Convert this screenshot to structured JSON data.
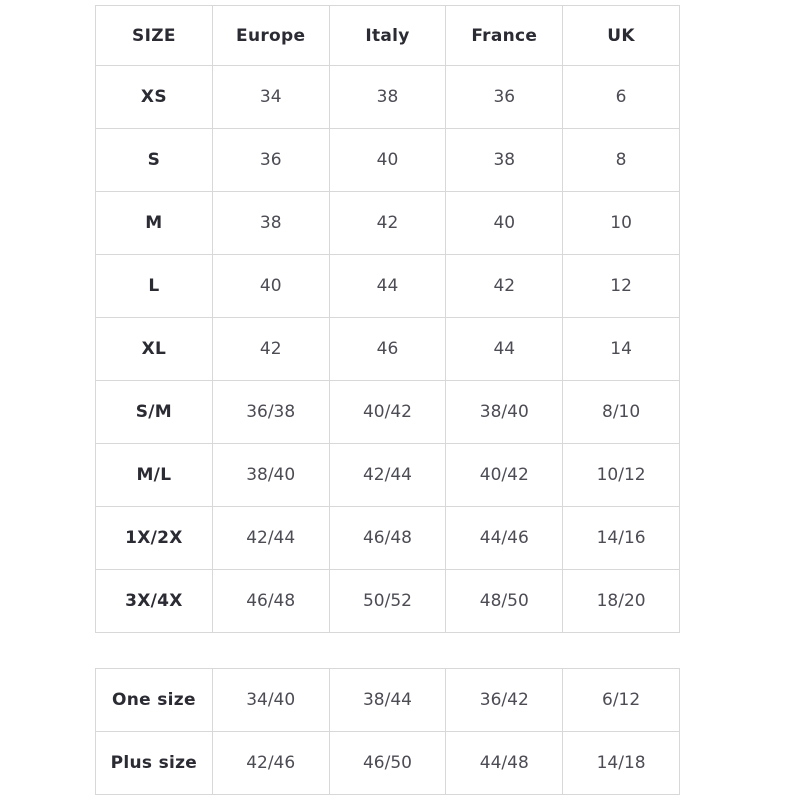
{
  "page": {
    "background": "#ffffff"
  },
  "colors": {
    "border": "#d8d8d8",
    "header_text": "#2b2b34",
    "cell_text": "#4c4c55"
  },
  "chart_data": {
    "type": "table",
    "title": "",
    "columns": [
      "SIZE",
      "Europe",
      "Italy",
      "France",
      "UK"
    ],
    "rows": [
      {
        "size": "XS",
        "values": [
          "34",
          "38",
          "36",
          "6"
        ]
      },
      {
        "size": "S",
        "values": [
          "36",
          "40",
          "38",
          "8"
        ]
      },
      {
        "size": "M",
        "values": [
          "38",
          "42",
          "40",
          "10"
        ]
      },
      {
        "size": "L",
        "values": [
          "40",
          "44",
          "42",
          "12"
        ]
      },
      {
        "size": "XL",
        "values": [
          "42",
          "46",
          "44",
          "14"
        ]
      },
      {
        "size": "S/M",
        "values": [
          "36/38",
          "40/42",
          "38/40",
          "8/10"
        ]
      },
      {
        "size": "M/L",
        "values": [
          "38/40",
          "42/44",
          "40/42",
          "10/12"
        ]
      },
      {
        "size": "1X/2X",
        "values": [
          "42/44",
          "46/48",
          "44/46",
          "14/16"
        ]
      },
      {
        "size": "3X/4X",
        "values": [
          "46/48",
          "50/52",
          "48/50",
          "18/20"
        ]
      }
    ],
    "special_rows": [
      {
        "size": "One size",
        "values": [
          "34/40",
          "38/44",
          "36/42",
          "6/12"
        ]
      },
      {
        "size": "Plus size",
        "values": [
          "42/46",
          "46/50",
          "44/48",
          "14/18"
        ]
      }
    ]
  }
}
